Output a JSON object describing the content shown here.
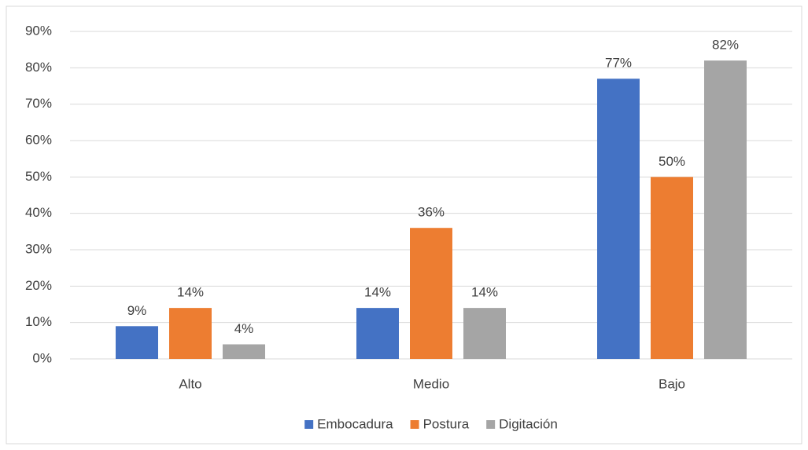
{
  "chart_data": {
    "type": "bar",
    "categories": [
      "Alto",
      "Medio",
      "Bajo"
    ],
    "series": [
      {
        "name": "Embocadura",
        "color": "#4472c4",
        "values": [
          9,
          14,
          77
        ],
        "value_labels": [
          "9%",
          "14%",
          "77%"
        ]
      },
      {
        "name": "Postura",
        "color": "#ed7d31",
        "values": [
          14,
          36,
          50
        ],
        "value_labels": [
          "14%",
          "36%",
          "50%"
        ]
      },
      {
        "name": "Digitación",
        "color": "#a5a5a5",
        "values": [
          4,
          14,
          82
        ],
        "value_labels": [
          "4%",
          "14%",
          "82%"
        ]
      }
    ],
    "ylim": [
      0,
      90
    ],
    "yticks": [
      {
        "value": 0,
        "label": "0%"
      },
      {
        "value": 10,
        "label": "10%"
      },
      {
        "value": 20,
        "label": "20%"
      },
      {
        "value": 30,
        "label": "30%"
      },
      {
        "value": 40,
        "label": "40%"
      },
      {
        "value": 50,
        "label": "50%"
      },
      {
        "value": 60,
        "label": "60%"
      },
      {
        "value": 70,
        "label": "70%"
      },
      {
        "value": 80,
        "label": "80%"
      },
      {
        "value": 90,
        "label": "90%"
      }
    ],
    "grid": true,
    "legend": "bottom"
  }
}
